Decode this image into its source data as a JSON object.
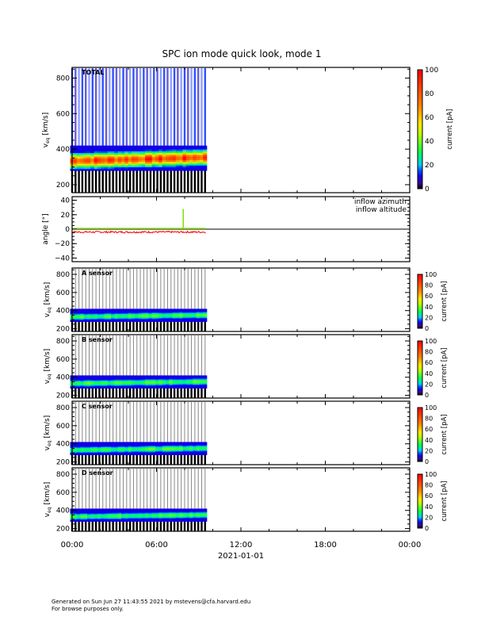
{
  "chart_data": {
    "type": "heatmap",
    "title": "SPC ion mode quick look, mode 1",
    "xlabel": "2021-01-01",
    "x_ticks": [
      "00:00",
      "06:00",
      "12:00",
      "18:00",
      "00:00"
    ],
    "x_range_hours": [
      0,
      24
    ],
    "data_end_hours": 9.5,
    "panels": [
      {
        "id": "total",
        "label": "TOTAL",
        "type": "heatmap",
        "ylabel": "v_eq [km/s]",
        "ylabel_main": "v",
        "ylabel_sub": "eq",
        "ylabel_unit": "[km/s]",
        "yticks": [
          "200",
          "400",
          "600",
          "800"
        ],
        "ylim": [
          155,
          860
        ],
        "peak_speed": 330,
        "background": true,
        "colorbar": {
          "label": "current [pA]",
          "ticks": [
            "0",
            "20",
            "40",
            "60",
            "80",
            "100"
          ],
          "range": [
            0,
            100
          ]
        }
      },
      {
        "id": "angle",
        "type": "line",
        "ylabel": "angle [°]",
        "yticks": [
          "40",
          "20",
          "0",
          "−20",
          "−40"
        ],
        "ylim": [
          -45,
          45
        ],
        "series": [
          {
            "name": "inflow azimuth",
            "color": "#ff0000",
            "mean": -4
          },
          {
            "name": "inflow altitude",
            "color": "#80e000",
            "mean": 1,
            "spike": {
              "x_hours": 7.9,
              "value": 28
            }
          }
        ]
      },
      {
        "id": "a",
        "label": "A sensor",
        "type": "heatmap",
        "ylabel_main": "v",
        "ylabel_sub": "eq",
        "ylabel_unit": "[km/s]",
        "yticks": [
          "200",
          "400",
          "600",
          "800"
        ],
        "ylim": [
          170,
          870
        ],
        "peak_speed": 330,
        "background": false,
        "colorbar": {
          "label": "current [pA]",
          "ticks": [
            "0",
            "20",
            "40",
            "60",
            "80",
            "100"
          ],
          "range": [
            0,
            100
          ]
        }
      },
      {
        "id": "b",
        "label": "B sensor",
        "type": "heatmap",
        "ylabel_main": "v",
        "ylabel_sub": "eq",
        "ylabel_unit": "[km/s]",
        "yticks": [
          "200",
          "400",
          "600",
          "800"
        ],
        "ylim": [
          170,
          870
        ],
        "peak_speed": 330,
        "background": false,
        "colorbar": {
          "label": "current [pA]",
          "ticks": [
            "0",
            "20",
            "40",
            "60",
            "80",
            "100"
          ],
          "range": [
            0,
            100
          ]
        }
      },
      {
        "id": "c",
        "label": "C sensor",
        "type": "heatmap",
        "ylabel_main": "v",
        "ylabel_sub": "eq",
        "ylabel_unit": "[km/s]",
        "yticks": [
          "200",
          "400",
          "600",
          "800"
        ],
        "ylim": [
          170,
          870
        ],
        "peak_speed": 330,
        "background": false,
        "colorbar": {
          "label": "current [pA]",
          "ticks": [
            "0",
            "20",
            "40",
            "60",
            "80",
            "100"
          ],
          "range": [
            0,
            100
          ]
        }
      },
      {
        "id": "d",
        "label": "D sensor",
        "type": "heatmap",
        "ylabel_main": "v",
        "ylabel_sub": "eq",
        "ylabel_unit": "[km/s]",
        "yticks": [
          "200",
          "400",
          "600",
          "800"
        ],
        "ylim": [
          170,
          870
        ],
        "peak_speed": 330,
        "background": false,
        "colorbar": {
          "label": "current [pA]",
          "ticks": [
            "0",
            "20",
            "40",
            "60",
            "80",
            "100"
          ],
          "range": [
            0,
            100
          ]
        }
      }
    ]
  },
  "footer": {
    "line1": "Generated on Sun Jun 27 11:43:55 2021 by mstevens@cfa.harvard.edu",
    "line2": "For browse purposes only."
  }
}
